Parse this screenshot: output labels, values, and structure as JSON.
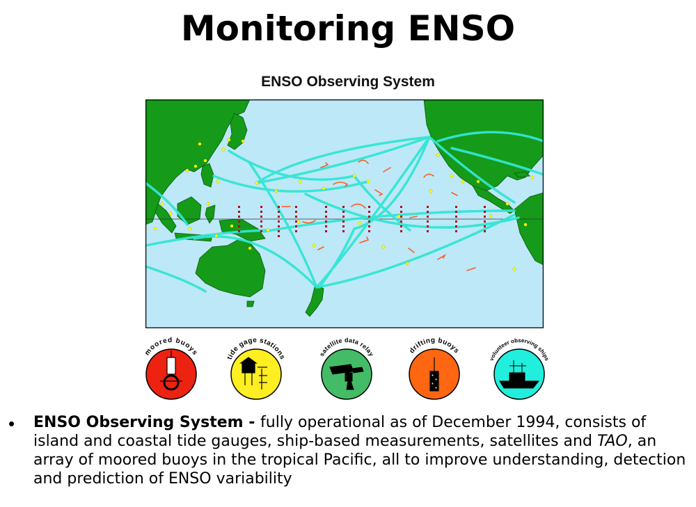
{
  "slide": {
    "title": "Monitoring ENSO",
    "map_title": "ENSO Observing System"
  },
  "colors": {
    "ocean": "#bde8f7",
    "land": "#159a19",
    "ship_tracks": "#33e5d4",
    "tide_gauges": "#ffff00",
    "moored_buoys": "#b3001b",
    "drifting_buoys": "#ff5a1f"
  },
  "badges": [
    {
      "label": "moored buoys",
      "icon": "moored-buoy-icon",
      "color": "#ee2211"
    },
    {
      "label": "tide gage stations",
      "icon": "tide-gauge-icon",
      "color": "#ffee22"
    },
    {
      "label": "satellite data relay",
      "icon": "satellite-icon",
      "color": "#44bb66"
    },
    {
      "label": "drifting buoys",
      "icon": "drifting-buoy-icon",
      "color": "#ff6611"
    },
    {
      "label": "volunteer observing ships",
      "icon": "ship-icon",
      "color": "#22eedd"
    }
  ],
  "bullet": {
    "term": "ENSO Observing System",
    "separator": " - ",
    "text1": "fully operational as of December 1994, consists of island and coastal tide gauges, ship-based measurements, satellites and ",
    "emphasis": "TAO",
    "text2": ", an array of moored buoys in the tropical Pacific, all to improve understanding, detection and prediction of ENSO variability"
  }
}
